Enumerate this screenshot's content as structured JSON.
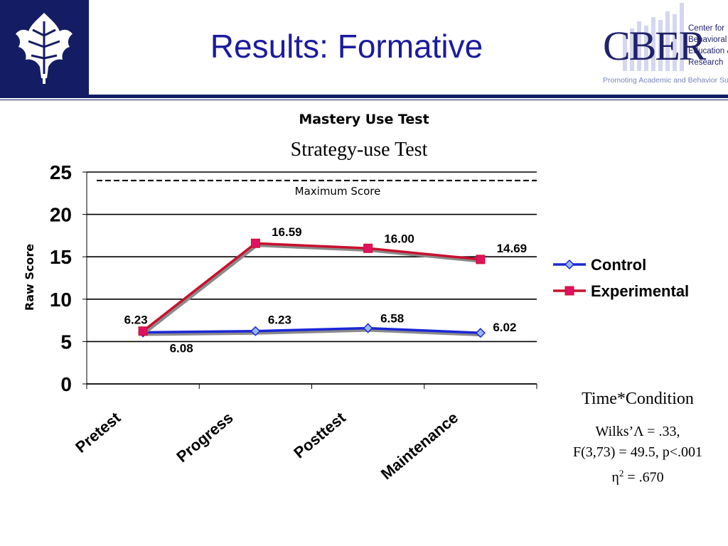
{
  "slide": {
    "title": "Results: Formative"
  },
  "cber_logo": {
    "letters": "CBER",
    "lines": [
      "Center for",
      "Behavioral",
      "Education &",
      "Research"
    ],
    "tagline": "Promoting Academic and Behavior Supports",
    "color": "#20236b"
  },
  "colors": {
    "header_blue": "#141d63",
    "title_blue": "#1b1b9e"
  },
  "stats": {
    "heading": "Time*Condition",
    "line1": "Wilks’Λ = .33,",
    "line2": "F(3,73) = 49.5, p<.001",
    "line3_symbol": "η",
    "line3_sup": "2",
    "line3_rest": " = .670"
  },
  "chart_data": {
    "type": "line",
    "title": "Mastery Use Test",
    "subtitle": "Strategy-use Test",
    "xlabel": "",
    "ylabel": "Raw Score",
    "categories": [
      "Pretest",
      "Progress",
      "Posttest",
      "Maintenance"
    ],
    "ylim": [
      0,
      25
    ],
    "yticks": [
      0,
      5,
      10,
      15,
      20,
      25
    ],
    "grid": true,
    "legend_position": "right",
    "reference_line": {
      "value": 24,
      "label": "Maximum Score",
      "style": "dashed"
    },
    "series": [
      {
        "name": "Control",
        "values": [
          6.08,
          6.23,
          6.58,
          6.02
        ],
        "labels": [
          "6.08",
          "6.23",
          "6.58",
          "6.02"
        ],
        "color": "#1b27d6",
        "marker": "diamond"
      },
      {
        "name": "Experimental",
        "values": [
          6.23,
          16.59,
          16.0,
          14.69
        ],
        "labels": [
          "6.23",
          "16.59",
          "16.00",
          "14.69"
        ],
        "color": "#c8102e",
        "marker": "square"
      }
    ]
  }
}
